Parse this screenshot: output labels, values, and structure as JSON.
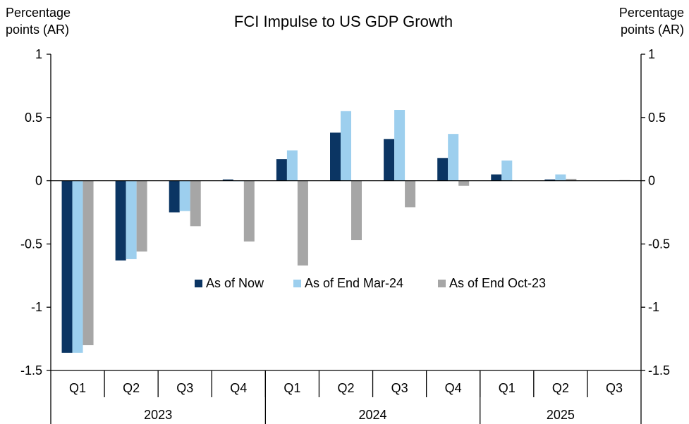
{
  "chart_data": {
    "type": "bar",
    "title": "FCI Impulse to US GDP Growth",
    "ylabel_left": [
      "Percentage",
      "points (AR)"
    ],
    "ylabel_right": [
      "Percentage",
      "points (AR)"
    ],
    "ylim": [
      -1.5,
      1
    ],
    "yticks": [
      1,
      0.5,
      0,
      -0.5,
      -1,
      -1.5
    ],
    "ytick_labels": [
      "1",
      "0.5",
      "0",
      "-0.5",
      "-1",
      "-1.5"
    ],
    "categories": [
      "Q1",
      "Q2",
      "Q3",
      "Q4",
      "Q1",
      "Q2",
      "Q3",
      "Q4",
      "Q1",
      "Q2",
      "Q3"
    ],
    "groups": [
      {
        "label": "2023",
        "count": 4
      },
      {
        "label": "2024",
        "count": 4
      },
      {
        "label": "2025",
        "count": 3
      }
    ],
    "series": [
      {
        "name": "As of Now",
        "color": "#0b3563",
        "values": [
          -1.36,
          -0.63,
          -0.25,
          0.01,
          0.17,
          0.38,
          0.33,
          0.18,
          0.05,
          0.01,
          null
        ]
      },
      {
        "name": "As of End Mar-24",
        "color": "#9dcfee",
        "values": [
          -1.36,
          -0.62,
          -0.24,
          0.0,
          0.24,
          0.55,
          0.56,
          0.37,
          0.16,
          0.05,
          null
        ]
      },
      {
        "name": "As of End Oct-23",
        "color": "#a6a6a6",
        "values": [
          -1.3,
          -0.56,
          -0.36,
          -0.48,
          -0.67,
          -0.47,
          -0.21,
          -0.04,
          null,
          0.015,
          0.005
        ]
      }
    ],
    "legend": {
      "position": "center"
    },
    "grid": false
  }
}
